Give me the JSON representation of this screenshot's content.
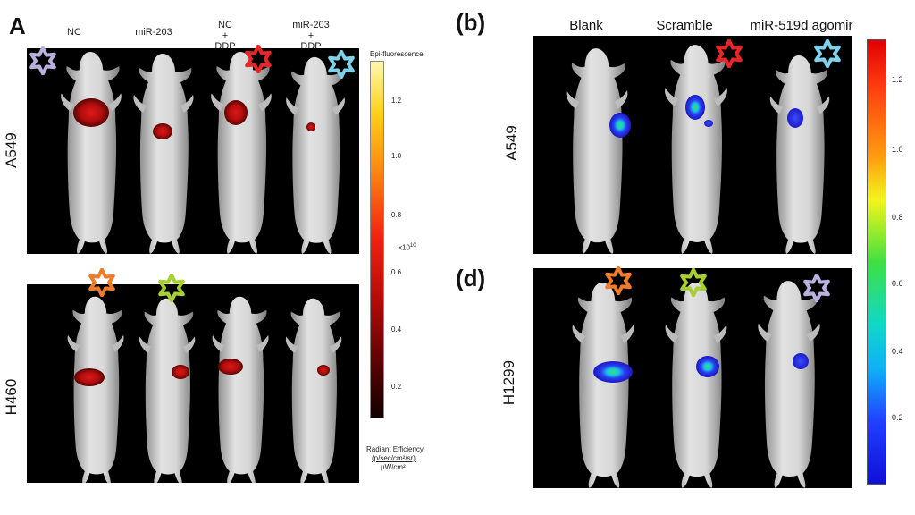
{
  "panelA": {
    "letter": "A",
    "columns": [
      "NC",
      "miR-203",
      "NC\n+\nDDP",
      "miR-203\n+\nDDP"
    ],
    "rows": [
      "A549",
      "H460"
    ],
    "colorbar": {
      "title": "Epi-fluorescence",
      "ticks": [
        "1.2",
        "1.0",
        "0.8",
        "0.6",
        "0.4",
        "0.2"
      ],
      "multiplier": "x10",
      "multiplier_exp": "10",
      "unit_line1": "Radiant Efficiency",
      "unit_line2": "(p/sec/cm²/sr)",
      "unit_line3": "µW/cm²"
    }
  },
  "panelB": {
    "letter": "(b)",
    "columns": [
      "Blank",
      "Scramble",
      "miR-519d agomir"
    ],
    "row": "A549"
  },
  "panelD": {
    "letter": "(d)",
    "row": "H1299"
  },
  "colorbar_right": {
    "ticks": [
      "1.2",
      "1.0",
      "0.8",
      "0.6",
      "0.4",
      "0.2"
    ]
  },
  "colors": {
    "star_lavender": "#b9b0dc",
    "star_red": "#e8262a",
    "star_cyan": "#7fd0e8",
    "star_orange": "#f07c2a",
    "star_green": "#a6cf2f"
  }
}
